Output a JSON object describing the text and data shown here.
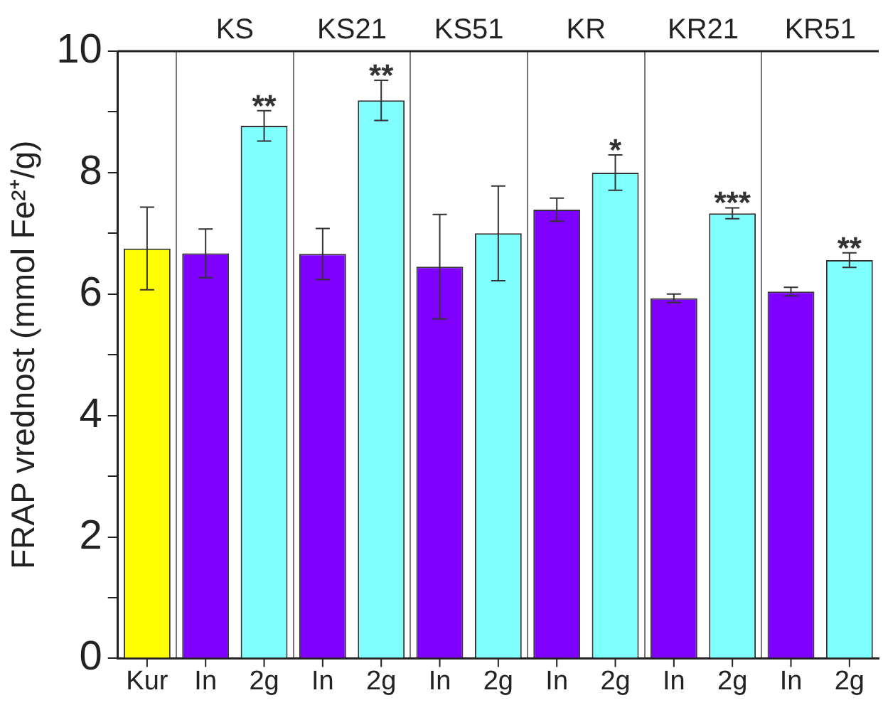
{
  "chart_data": {
    "type": "bar",
    "ylabel": "FRAP vrednost (mmol Fe²⁺/g)",
    "categories": [
      "Kur",
      "In",
      "2g",
      "In",
      "2g",
      "In",
      "2g",
      "In",
      "2g",
      "In",
      "2g",
      "In",
      "2g"
    ],
    "values": [
      6.75,
      6.67,
      8.77,
      6.66,
      9.19,
      6.45,
      7.0,
      7.39,
      8.0,
      5.93,
      7.33,
      6.04,
      6.56
    ],
    "errors": [
      0.68,
      0.4,
      0.25,
      0.42,
      0.33,
      0.86,
      0.78,
      0.19,
      0.29,
      0.07,
      0.09,
      0.07,
      0.12
    ],
    "colors": [
      "#ffff00",
      "#8000ff",
      "#80ffff",
      "#8000ff",
      "#80ffff",
      "#8000ff",
      "#80ffff",
      "#8000ff",
      "#80ffff",
      "#8000ff",
      "#80ffff",
      "#8000ff",
      "#80ffff"
    ],
    "value_labels": [
      null,
      null,
      "**",
      null,
      "**",
      null,
      null,
      null,
      "*",
      null,
      "***",
      null,
      "**"
    ],
    "annotations": [
      "KS",
      "KS21",
      "KS51",
      "KR",
      "KR21",
      "KR51"
    ],
    "ylim": [
      0,
      10
    ],
    "yticks": [
      0,
      {
        "value": 1,
        "label": null
      },
      2,
      {
        "value": 3,
        "label": null
      },
      4,
      {
        "value": 5,
        "label": null
      },
      6,
      {
        "value": 7,
        "label": null
      },
      8,
      {
        "value": 9,
        "label": null
      },
      10
    ]
  }
}
